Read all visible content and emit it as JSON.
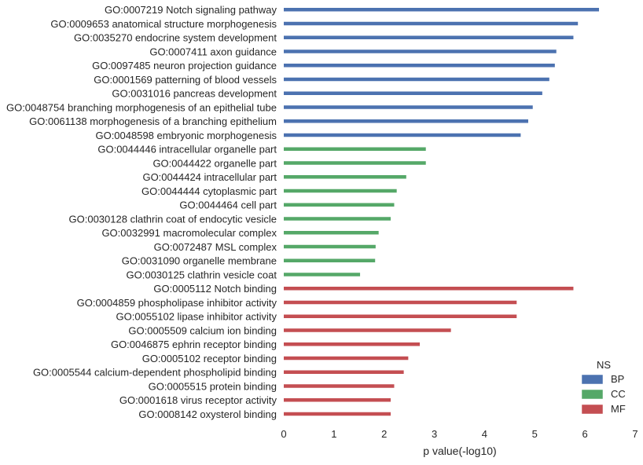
{
  "chart_data": {
    "type": "bar",
    "orientation": "horizontal",
    "title": "",
    "xlabel": "p value(-log10)",
    "ylabel": "",
    "xlim": [
      0,
      7
    ],
    "xticks": [
      0,
      1,
      2,
      3,
      4,
      5,
      6,
      7
    ],
    "grid": false,
    "legend": {
      "title": "NS",
      "placement": "bottom-right",
      "entries": [
        {
          "name": "BP",
          "color": "#4c72b0"
        },
        {
          "name": "CC",
          "color": "#55a868"
        },
        {
          "name": "MF",
          "color": "#c44e52"
        }
      ]
    },
    "categories": [
      "GO:0007219 Notch signaling pathway",
      "GO:0009653 anatomical structure morphogenesis",
      "GO:0035270 endocrine system development",
      "GO:0007411 axon guidance",
      "GO:0097485 neuron projection guidance",
      "GO:0001569 patterning of blood vessels",
      "GO:0031016 pancreas development",
      "GO:0048754 branching morphogenesis of an epithelial tube",
      "GO:0061138 morphogenesis of a branching epithelium",
      "GO:0048598 embryonic morphogenesis",
      "GO:0044446 intracellular organelle part",
      "GO:0044422 organelle part",
      "GO:0044424 intracellular part",
      "GO:0044444 cytoplasmic part",
      "GO:0044464 cell part",
      "GO:0030128 clathrin coat of endocytic vesicle",
      "GO:0032991 macromolecular complex",
      "GO:0072487 MSL complex",
      "GO:0031090 organelle membrane",
      "GO:0030125 clathrin vesicle coat",
      "GO:0005112 Notch binding",
      "GO:0004859 phospholipase inhibitor activity",
      "GO:0055102 lipase inhibitor activity",
      "GO:0005509 calcium ion binding",
      "GO:0046875 ephrin receptor binding",
      "GO:0005102 receptor binding",
      "GO:0005544 calcium-dependent phospholipid binding",
      "GO:0005515 protein binding",
      "GO:0001618 virus receptor activity",
      "GO:0008142 oxysterol binding"
    ],
    "series": [
      {
        "name": "BP",
        "color": "#4c72b0",
        "values": [
          6.28,
          5.86,
          5.77,
          5.43,
          5.4,
          5.29,
          5.15,
          4.96,
          4.87,
          4.72,
          null,
          null,
          null,
          null,
          null,
          null,
          null,
          null,
          null,
          null,
          null,
          null,
          null,
          null,
          null,
          null,
          null,
          null,
          null,
          null
        ]
      },
      {
        "name": "CC",
        "color": "#55a868",
        "values": [
          null,
          null,
          null,
          null,
          null,
          null,
          null,
          null,
          null,
          null,
          2.83,
          2.83,
          2.44,
          2.25,
          2.2,
          2.13,
          1.89,
          1.83,
          1.82,
          1.52,
          null,
          null,
          null,
          null,
          null,
          null,
          null,
          null,
          null,
          null
        ]
      },
      {
        "name": "MF",
        "color": "#c44e52",
        "values": [
          null,
          null,
          null,
          null,
          null,
          null,
          null,
          null,
          null,
          null,
          null,
          null,
          null,
          null,
          null,
          null,
          null,
          null,
          null,
          null,
          5.77,
          4.64,
          4.64,
          3.33,
          2.71,
          2.48,
          2.39,
          2.2,
          2.13,
          2.13
        ]
      }
    ]
  }
}
